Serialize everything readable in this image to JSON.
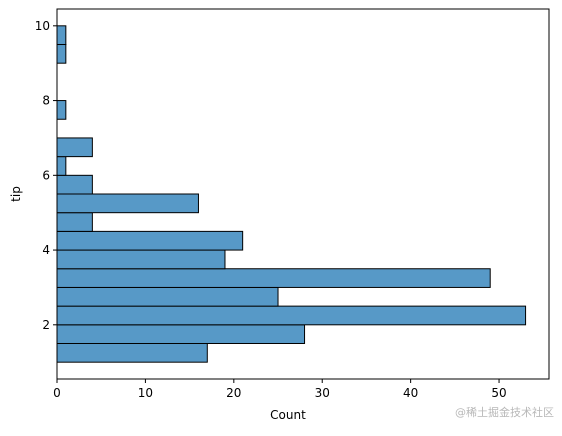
{
  "chart_data": {
    "type": "histogram",
    "orientation": "horizontal",
    "xlabel": "Count",
    "ylabel": "tip",
    "bins": [
      1,
      1.5,
      2,
      2.5,
      3,
      3.5,
      4,
      4.5,
      5,
      5.5,
      6,
      6.5,
      7,
      7.5,
      8,
      8.5,
      9,
      9.5,
      10
    ],
    "counts": [
      17,
      28,
      53,
      25,
      49,
      19,
      21,
      4,
      16,
      4,
      1,
      4,
      0,
      1,
      0,
      0,
      1,
      1
    ],
    "color": "#5799c7",
    "edgecolor": "#000000",
    "xlim": [
      0,
      55.65
    ],
    "xticks": [
      0,
      10,
      20,
      30,
      40,
      50
    ],
    "ylim": [
      0.55,
      10.45
    ],
    "yticks": [
      2,
      4,
      6,
      8,
      10
    ],
    "watermark": "@稀土掘金技术社区"
  }
}
